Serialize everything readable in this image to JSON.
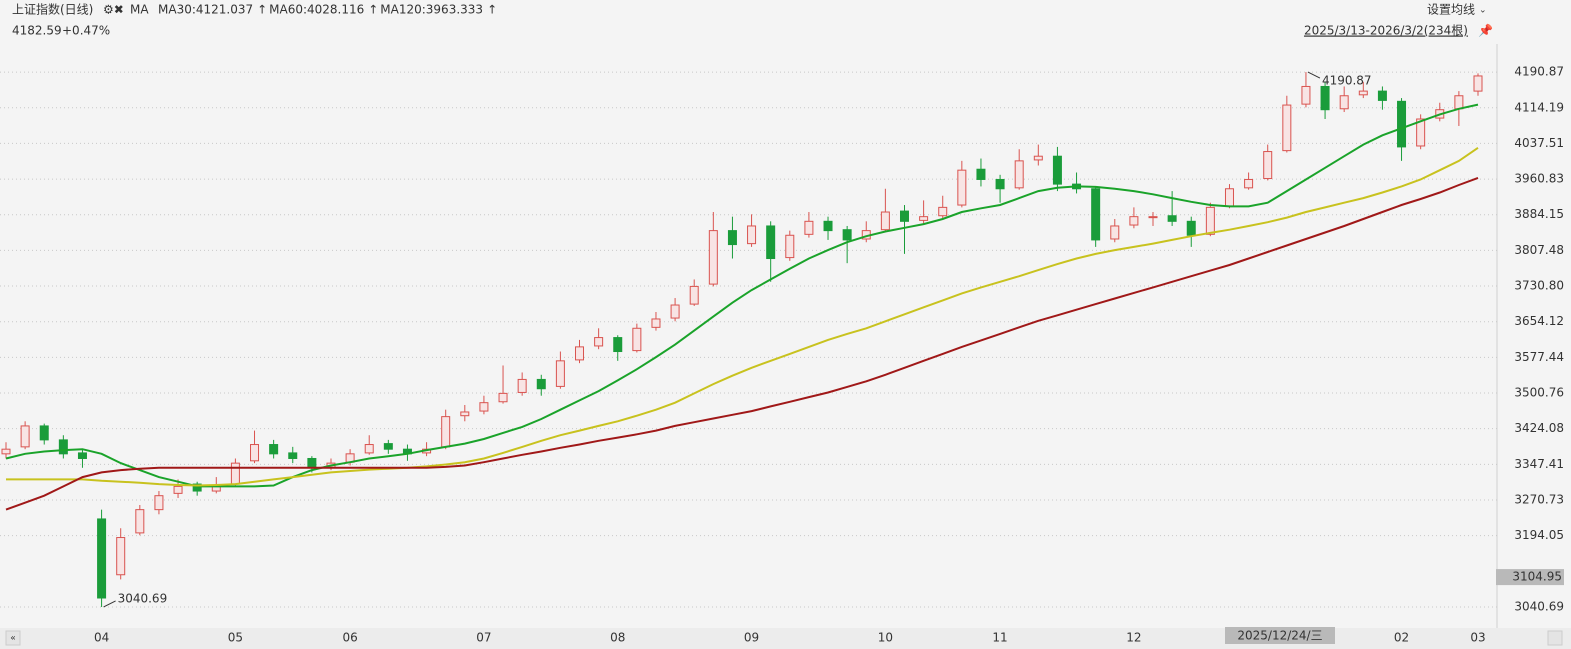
{
  "chart_data": {
    "type": "candlestick",
    "title": "上证指数(日线)",
    "indicator": "MA",
    "last_price": 4182.59,
    "change": "+0.47%",
    "settings": "设置均线",
    "range": "2025/3/13-2026/3/2(234根)",
    "max_label": "4190.87",
    "min_label": "3040.69",
    "crosshair": {
      "price": 3104.95,
      "date": "2025/12/24/三"
    },
    "up_color": "#d9534f",
    "down_color": "#1a9c3a",
    "ylim": [
      3020,
      4250
    ],
    "yticks": [
      4190.87,
      4114.19,
      4037.51,
      3960.83,
      3884.15,
      3807.48,
      {
        "value": 3730.8,
        "label": "3730.80"
      },
      3654.12,
      3577.44,
      3500.76,
      3424.08,
      3347.41,
      3270.73,
      3194.05,
      3040.69
    ],
    "grid": true,
    "categories": [
      null,
      null,
      null,
      null,
      null,
      "04",
      null,
      null,
      null,
      null,
      null,
      null,
      "05",
      null,
      null,
      null,
      null,
      null,
      "06",
      null,
      null,
      null,
      null,
      null,
      null,
      "07",
      null,
      null,
      null,
      null,
      null,
      null,
      "08",
      null,
      null,
      null,
      null,
      null,
      null,
      "09",
      null,
      null,
      null,
      null,
      null,
      null,
      "10",
      null,
      null,
      null,
      null,
      null,
      "11",
      null,
      null,
      null,
      null,
      null,
      null,
      "12",
      null,
      null,
      null,
      null,
      null,
      null,
      null,
      null,
      null,
      null,
      null,
      null,
      null,
      "02",
      null,
      null,
      null,
      "03"
    ],
    "candles": [
      [
        3370,
        3395,
        3360,
        3380
      ],
      [
        3385,
        3440,
        3380,
        3430
      ],
      [
        3430,
        3435,
        3390,
        3400
      ],
      [
        3400,
        3410,
        3360,
        3370
      ],
      [
        3372,
        3380,
        3340,
        3360
      ],
      [
        3230,
        3250,
        3040.69,
        3060
      ],
      [
        3110,
        3210,
        3100,
        3190
      ],
      [
        3200,
        3260,
        3195,
        3250
      ],
      [
        3250,
        3290,
        3240,
        3280
      ],
      [
        3285,
        3315,
        3275,
        3300
      ],
      [
        3305,
        3310,
        3280,
        3290
      ],
      [
        3290,
        3320,
        3285,
        3300
      ],
      [
        3305,
        3360,
        3300,
        3350
      ],
      [
        3355,
        3420,
        3350,
        3390
      ],
      [
        3390,
        3400,
        3360,
        3370
      ],
      [
        3372,
        3385,
        3350,
        3360
      ],
      [
        3360,
        3365,
        3330,
        3340
      ],
      [
        3340,
        3360,
        3335,
        3350
      ],
      [
        3352,
        3380,
        3345,
        3370
      ],
      [
        3372,
        3410,
        3368,
        3390
      ],
      [
        3392,
        3400,
        3370,
        3380
      ],
      [
        3380,
        3390,
        3355,
        3370
      ],
      [
        3372,
        3395,
        3365,
        3380
      ],
      [
        3385,
        3465,
        3380,
        3450
      ],
      [
        3452,
        3475,
        3440,
        3460
      ],
      [
        3462,
        3495,
        3455,
        3480
      ],
      [
        3482,
        3560,
        3478,
        3500
      ],
      [
        3502,
        3545,
        3495,
        3530
      ],
      [
        3530,
        3540,
        3495,
        3510
      ],
      [
        3515,
        3590,
        3510,
        3570
      ],
      [
        3572,
        3615,
        3565,
        3600
      ],
      [
        3602,
        3640,
        3595,
        3620
      ],
      [
        3620,
        3625,
        3570,
        3590
      ],
      [
        3592,
        3650,
        3588,
        3640
      ],
      [
        3642,
        3675,
        3635,
        3660
      ],
      [
        3662,
        3705,
        3655,
        3690
      ],
      [
        3692,
        3745,
        3688,
        3730
      ],
      [
        3735,
        3890,
        3730,
        3850
      ],
      [
        3850,
        3880,
        3790,
        3820
      ],
      [
        3822,
        3885,
        3815,
        3860
      ],
      [
        3860,
        3870,
        3740,
        3790
      ],
      [
        3792,
        3850,
        3785,
        3840
      ],
      [
        3842,
        3890,
        3835,
        3870
      ],
      [
        3870,
        3880,
        3830,
        3850
      ],
      [
        3852,
        3860,
        3780,
        3830
      ],
      [
        3832,
        3870,
        3825,
        3850
      ],
      [
        3852,
        3940,
        3848,
        3890
      ],
      [
        3892,
        3905,
        3800,
        3870
      ],
      [
        3872,
        3915,
        3865,
        3880
      ],
      [
        3882,
        3925,
        3875,
        3900
      ],
      [
        3905,
        4000,
        3900,
        3980
      ],
      [
        3982,
        4005,
        3945,
        3960
      ],
      [
        3960,
        3970,
        3910,
        3940
      ],
      [
        3942,
        4025,
        3938,
        4000
      ],
      [
        4002,
        4035,
        3990,
        4010
      ],
      [
        4010,
        4030,
        3935,
        3950
      ],
      [
        3950,
        3975,
        3930,
        3940
      ],
      [
        3940,
        3945,
        3815,
        3830
      ],
      [
        3832,
        3875,
        3825,
        3860
      ],
      [
        3862,
        3900,
        3855,
        3880
      ],
      [
        3880,
        3890,
        3860,
        3880
      ],
      [
        3882,
        3935,
        3860,
        3870
      ],
      [
        3870,
        3880,
        3815,
        3840
      ],
      [
        3842,
        3910,
        3838,
        3900
      ],
      [
        3902,
        3950,
        3898,
        3940
      ],
      [
        3942,
        3975,
        3938,
        3960
      ],
      [
        3962,
        4035,
        3958,
        4020
      ],
      [
        4022,
        4140,
        4018,
        4120
      ],
      [
        4122,
        4190.87,
        4115,
        4160
      ],
      [
        4160,
        4170,
        4090,
        4110
      ],
      [
        4112,
        4160,
        4105,
        4140
      ],
      [
        4142,
        4170,
        4135,
        4150
      ],
      [
        4150,
        4160,
        4110,
        4130
      ],
      [
        4128,
        4135,
        4000,
        4030
      ],
      [
        4032,
        4100,
        4025,
        4090
      ],
      [
        4092,
        4125,
        4085,
        4110
      ],
      [
        4112,
        4150,
        4075,
        4140
      ],
      [
        4150,
        4188,
        4140,
        4182.59
      ]
    ],
    "series": [
      {
        "name": "MA30",
        "label": "MA30:4121.037",
        "color": "#1aa32a",
        "values": [
          3360,
          3370,
          3375,
          3378,
          3380,
          3370,
          3350,
          3335,
          3320,
          3310,
          3300,
          3300,
          3300,
          3300,
          3302,
          3320,
          3335,
          3345,
          3352,
          3360,
          3365,
          3370,
          3378,
          3385,
          3392,
          3402,
          3415,
          3428,
          3445,
          3465,
          3485,
          3505,
          3528,
          3552,
          3578,
          3605,
          3635,
          3665,
          3695,
          3722,
          3745,
          3768,
          3790,
          3808,
          3825,
          3838,
          3848,
          3856,
          3864,
          3875,
          3890,
          3898,
          3905,
          3920,
          3935,
          3942,
          3945,
          3944,
          3940,
          3935,
          3928,
          3920,
          3912,
          3905,
          3902,
          3902,
          3910,
          3935,
          3960,
          3985,
          4010,
          4035,
          4055,
          4070,
          4085,
          4100,
          4112,
          4121.037
        ]
      },
      {
        "name": "MA60",
        "label": "MA60:4028.116",
        "color": "#c8c21e",
        "values": [
          3315,
          3315,
          3315,
          3315,
          3315,
          3312,
          3310,
          3308,
          3305,
          3303,
          3302,
          3303,
          3305,
          3310,
          3315,
          3320,
          3325,
          3330,
          3333,
          3336,
          3338,
          3340,
          3343,
          3347,
          3352,
          3360,
          3372,
          3385,
          3398,
          3410,
          3420,
          3430,
          3440,
          3452,
          3465,
          3480,
          3500,
          3520,
          3538,
          3555,
          3570,
          3585,
          3600,
          3615,
          3628,
          3640,
          3655,
          3670,
          3685,
          3700,
          3715,
          3728,
          3740,
          3752,
          3765,
          3778,
          3790,
          3800,
          3808,
          3815,
          3822,
          3830,
          3838,
          3845,
          3852,
          3860,
          3868,
          3878,
          3890,
          3900,
          3910,
          3920,
          3932,
          3945,
          3960,
          3980,
          4000,
          4028.116
        ]
      },
      {
        "name": "MA120",
        "label": "MA120:3963.333",
        "color": "#a01818",
        "values": [
          3250,
          3265,
          3280,
          3300,
          3320,
          3330,
          3335,
          3338,
          3340,
          3340,
          3340,
          3340,
          3340,
          3340,
          3340,
          3340,
          3340,
          3340,
          3340,
          3340,
          3340,
          3340,
          3340,
          3342,
          3345,
          3352,
          3360,
          3368,
          3375,
          3383,
          3390,
          3398,
          3405,
          3412,
          3420,
          3430,
          3438,
          3446,
          3454,
          3462,
          3472,
          3482,
          3492,
          3502,
          3514,
          3526,
          3540,
          3555,
          3570,
          3585,
          3600,
          3614,
          3628,
          3642,
          3656,
          3668,
          3680,
          3692,
          3704,
          3716,
          3728,
          3740,
          3752,
          3764,
          3776,
          3790,
          3804,
          3818,
          3832,
          3846,
          3860,
          3875,
          3890,
          3905,
          3918,
          3932,
          3948,
          3963.333
        ]
      }
    ]
  }
}
